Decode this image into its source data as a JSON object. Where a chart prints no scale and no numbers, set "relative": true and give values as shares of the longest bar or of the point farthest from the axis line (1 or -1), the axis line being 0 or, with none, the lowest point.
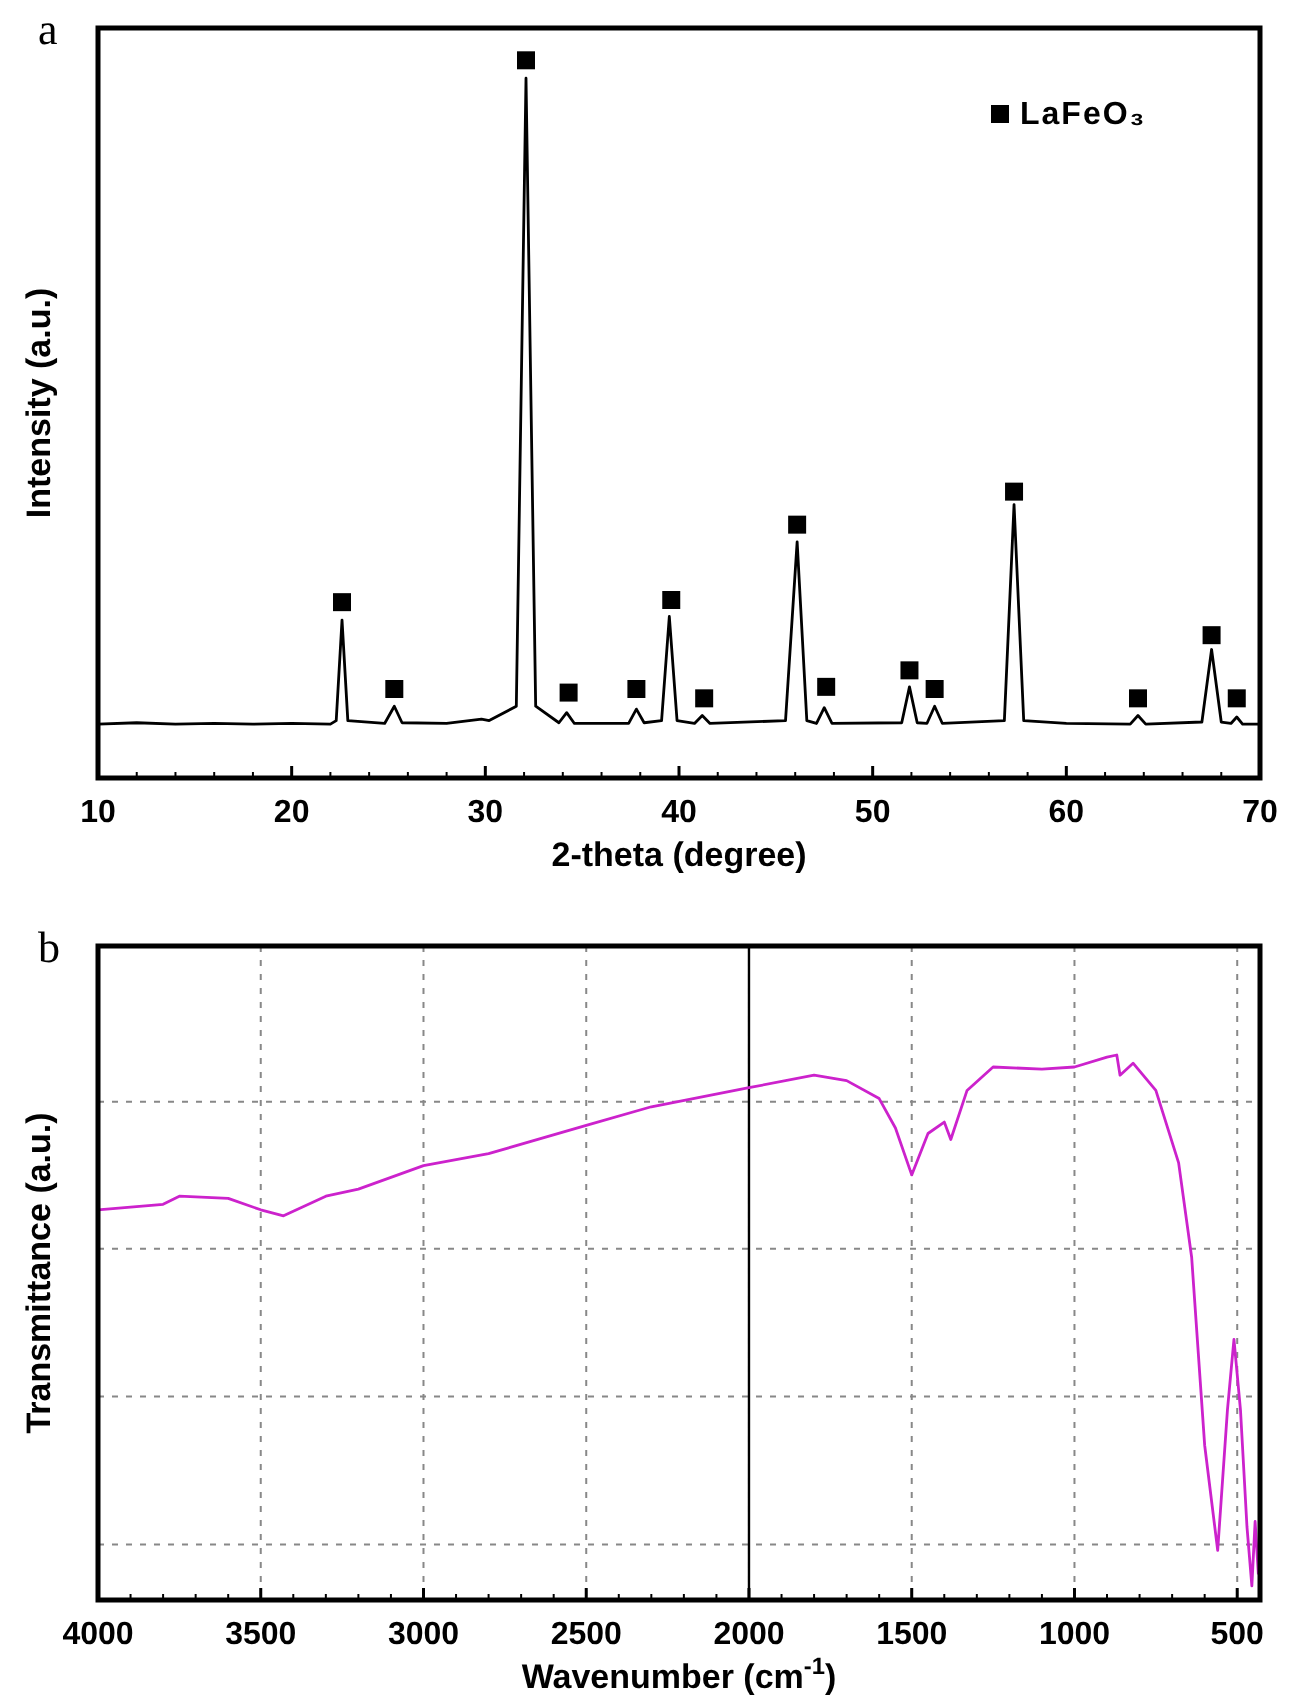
{
  "chart_data": [
    {
      "type": "line",
      "title": "a",
      "xlabel": "2-theta (degree)",
      "ylabel": "Intensity (a.u.)",
      "relative": true,
      "xlim": [
        10,
        70
      ],
      "xticks": [
        10,
        20,
        30,
        40,
        50,
        60,
        70
      ],
      "legend": "top right",
      "tick_labels": "x",
      "series": [
        {
          "color": "#000000",
          "x": [
            10,
            12,
            14,
            16,
            18,
            20,
            22,
            22.3,
            22.6,
            22.9,
            24.8,
            25.3,
            25.7,
            28,
            29.8,
            30.2,
            31.6,
            32.1,
            32.6,
            33.8,
            34.2,
            34.6,
            37.4,
            37.8,
            38.2,
            39.1,
            39.5,
            39.9,
            40.8,
            41.2,
            41.6,
            45.5,
            46.1,
            46.6,
            47.1,
            47.5,
            47.9,
            51.5,
            51.9,
            52.3,
            52.8,
            53.2,
            53.6,
            56.8,
            57.3,
            57.8,
            60,
            63.3,
            63.7,
            64.1,
            67,
            67.5,
            68,
            68.5,
            68.8,
            69.1,
            70
          ],
          "values": [
            0.075,
            0.077,
            0.075,
            0.076,
            0.075,
            0.076,
            0.075,
            0.08,
            0.22,
            0.08,
            0.076,
            0.1,
            0.077,
            0.076,
            0.082,
            0.08,
            0.1,
            0.975,
            0.1,
            0.077,
            0.091,
            0.076,
            0.076,
            0.096,
            0.077,
            0.08,
            0.225,
            0.08,
            0.076,
            0.087,
            0.076,
            0.08,
            0.329,
            0.08,
            0.076,
            0.098,
            0.076,
            0.077,
            0.127,
            0.077,
            0.076,
            0.1,
            0.076,
            0.08,
            0.381,
            0.08,
            0.076,
            0.075,
            0.087,
            0.075,
            0.078,
            0.179,
            0.078,
            0.076,
            0.085,
            0.075,
            0.075
          ]
        },
        {
          "type": "scatter",
          "name": "LaFeO₃",
          "color": "#000000",
          "marker": "square",
          "x": [
            22.6,
            25.3,
            32.1,
            34.3,
            37.8,
            39.6,
            41.3,
            46.1,
            47.6,
            51.9,
            53.2,
            57.3,
            63.7,
            67.5,
            68.8
          ],
          "values": [
            0.245,
            0.124,
            1.0,
            0.119,
            0.124,
            0.248,
            0.111,
            0.353,
            0.127,
            0.15,
            0.124,
            0.399,
            0.111,
            0.199,
            0.111
          ]
        }
      ]
    },
    {
      "type": "line",
      "title": "b",
      "xlabel": "Wavenumber (cm$^{-1}$)",
      "ylabel": "Transmittance (a.u.)",
      "relative": true,
      "xlim": [
        4000,
        430
      ],
      "xticks": [
        4000,
        3500,
        3000,
        2500,
        2000,
        1500,
        1000,
        500
      ],
      "grid": true,
      "tick_labels": "x",
      "ref_lines": [
        {
          "axis": "x",
          "value": 2000,
          "color": "#000000",
          "line_style": "solid"
        }
      ],
      "series": [
        {
          "color": "#cc22cc",
          "x": [
            4000,
            3800,
            3750,
            3600,
            3500,
            3430,
            3300,
            3200,
            3000,
            2800,
            2500,
            2300,
            2000,
            1800,
            1700,
            1600,
            1550,
            1500,
            1450,
            1400,
            1380,
            1330,
            1250,
            1100,
            1000,
            900,
            870,
            860,
            820,
            750,
            680,
            640,
            600,
            560,
            530,
            510,
            490,
            470,
            455,
            445,
            435
          ],
          "values": [
            0.716,
            0.726,
            0.741,
            0.737,
            0.716,
            0.705,
            0.741,
            0.754,
            0.797,
            0.819,
            0.871,
            0.905,
            0.94,
            0.963,
            0.953,
            0.92,
            0.866,
            0.78,
            0.856,
            0.877,
            0.845,
            0.935,
            0.978,
            0.974,
            0.978,
            0.996,
            1.0,
            0.963,
            0.985,
            0.935,
            0.802,
            0.629,
            0.284,
            0.091,
            0.349,
            0.478,
            0.349,
            0.134,
            0.026,
            0.144,
            0.047
          ]
        }
      ]
    }
  ]
}
